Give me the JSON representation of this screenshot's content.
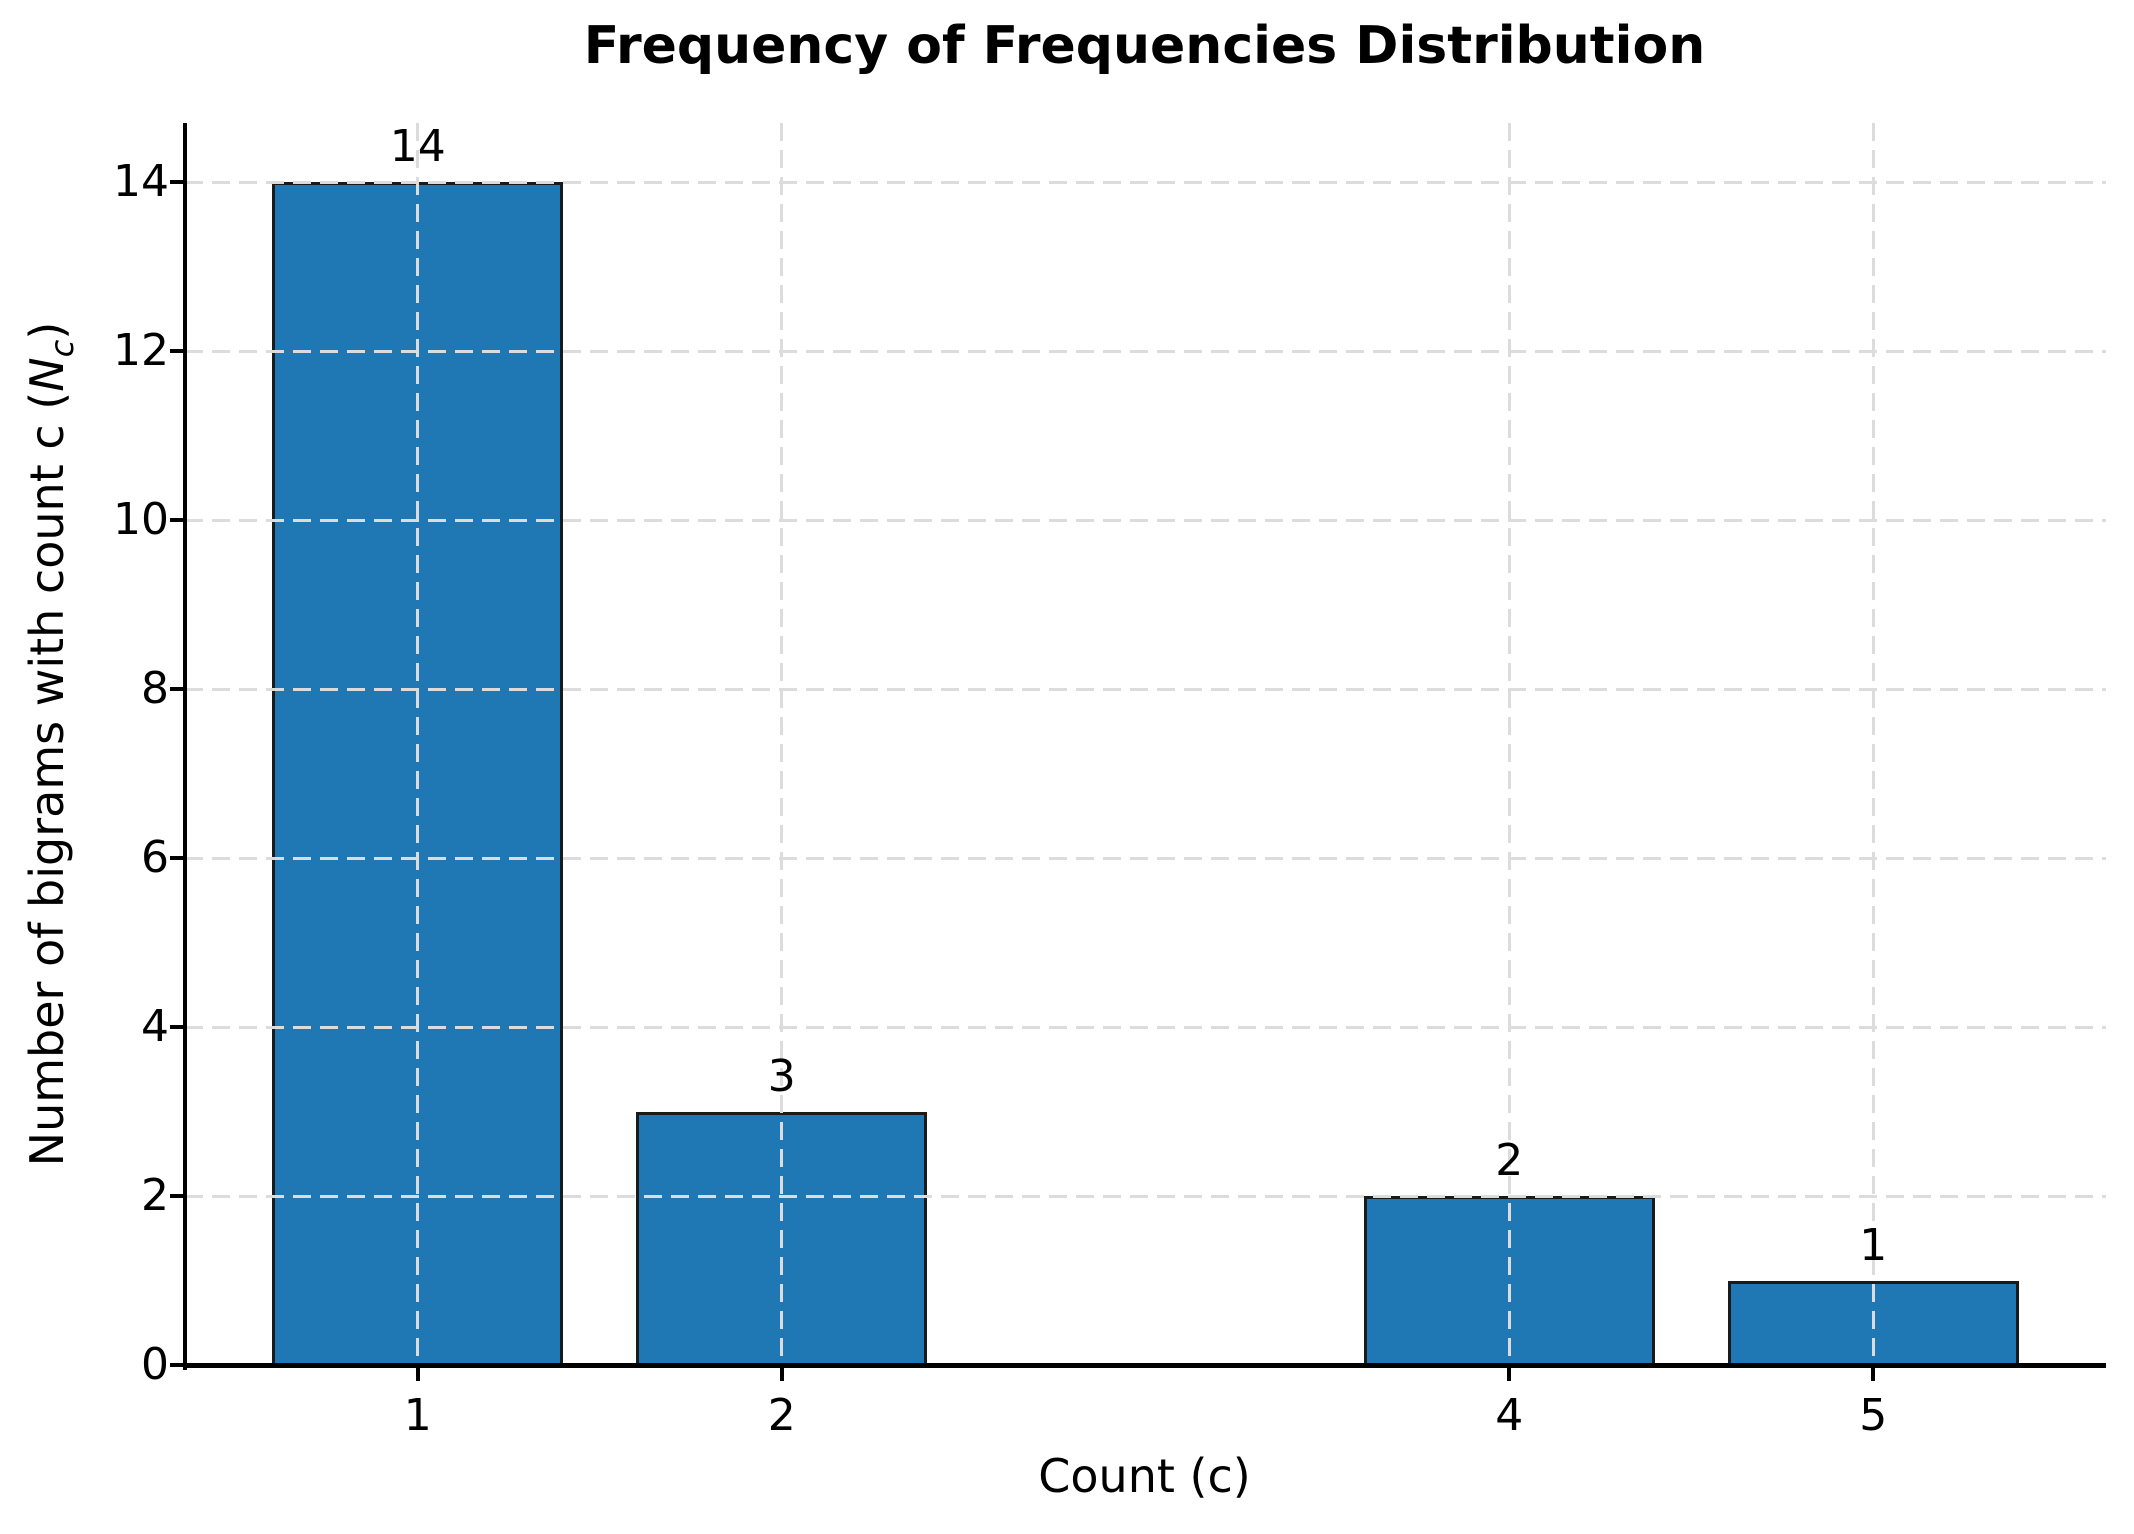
{
  "chart_data": {
    "type": "bar",
    "title": "Frequency of Frequencies Distribution",
    "xlabel": "Count (c)",
    "ylabel": "Number of bigrams with count c (N_c)",
    "ylabel_parts": {
      "prefix": "Number of bigrams with count c (",
      "var": "N",
      "subscript": "c",
      "suffix": ")"
    },
    "x": [
      1,
      2,
      4,
      5
    ],
    "values": [
      14,
      3,
      2,
      1
    ],
    "bar_labels": [
      "14",
      "3",
      "2",
      "1"
    ],
    "xticks": [
      1,
      2,
      4,
      5
    ],
    "xtick_labels": [
      "1",
      "2",
      "4",
      "5"
    ],
    "yticks": [
      0,
      2,
      4,
      6,
      8,
      10,
      12,
      14
    ],
    "ytick_labels": [
      "0",
      "2",
      "4",
      "6",
      "8",
      "10",
      "12",
      "14"
    ],
    "xlim": [
      0.36,
      5.64
    ],
    "ylim": [
      0,
      14.7
    ],
    "bar_width": 0.8,
    "style": {
      "bar_color": "#1f77b4",
      "bar_edge_color": "#1a1a1a",
      "grid_color": "#dcdcdc",
      "grid_style": "dashed",
      "grid_axis": "both",
      "grid_above_bars": true,
      "spine_color": "#000000",
      "text_color": "#000000",
      "background": "#ffffff",
      "legend": "none"
    }
  }
}
